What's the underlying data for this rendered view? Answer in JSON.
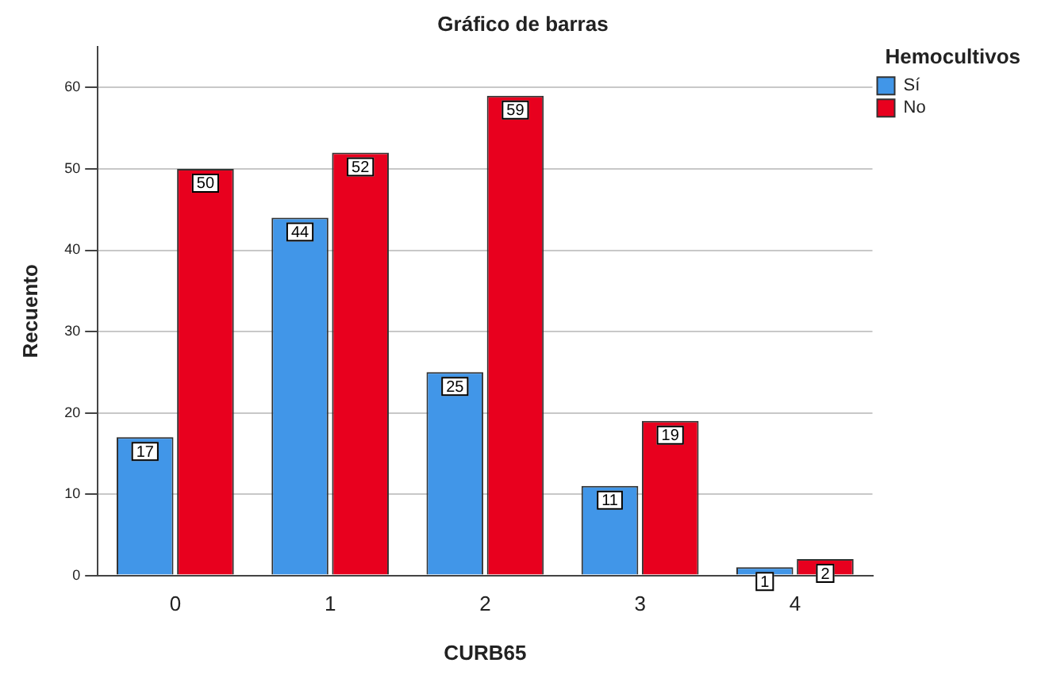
{
  "chart_data": {
    "type": "bar",
    "title": "Gráfico de barras",
    "xlabel": "CURB65",
    "ylabel": "Recuento",
    "legend_title": "Hemocultivos",
    "categories": [
      "0",
      "1",
      "2",
      "3",
      "4"
    ],
    "series": [
      {
        "name": "Sí",
        "color": "#4196e8",
        "values": [
          17,
          44,
          25,
          11,
          1
        ]
      },
      {
        "name": "No",
        "color": "#e8001e",
        "values": [
          50,
          52,
          59,
          19,
          2
        ]
      }
    ],
    "ylim": [
      0,
      65
    ],
    "yticks": [
      0,
      10,
      20,
      30,
      40,
      50,
      60
    ],
    "grid": "y",
    "legend": "top right",
    "data_labels": true
  }
}
